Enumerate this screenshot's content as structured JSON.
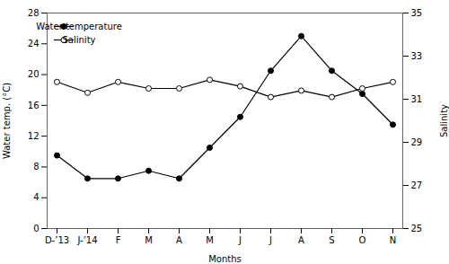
{
  "chart_data": {
    "type": "line",
    "categories": [
      "D-’13",
      "J-’14",
      "F",
      "M",
      "A",
      "M",
      "J",
      "J",
      "A",
      "S",
      "O",
      "N"
    ],
    "series": [
      {
        "name": "Water temperature",
        "color": "black",
        "marker": "circle",
        "values": [
          9.5,
          6.5,
          6.5,
          7.5,
          6.5,
          10.5,
          14.5,
          20.5,
          25.0,
          20.5,
          17.5,
          13.5
        ]
      },
      {
        "name": "Salinity",
        "color": "black",
        "marker": "open_circle",
        "axis": "y2",
        "values": [
          31.8,
          31.3,
          31.8,
          31.5,
          31.5,
          31.9,
          31.6,
          31.1,
          31.4,
          31.1,
          31.5,
          31.8
        ]
      }
    ],
    "xlabel": "Months",
    "ylabel": "Water temp. (°C)",
    "y2label": "Salinity",
    "ylim": [
      0,
      28
    ],
    "yticks": [
      0,
      4,
      8,
      12,
      16,
      20,
      24,
      28
    ],
    "y2lim": [
      25,
      35
    ],
    "y2ticks": [
      25,
      27,
      29,
      31,
      33,
      35
    ],
    "legend": "upper left",
    "grid": false
  }
}
